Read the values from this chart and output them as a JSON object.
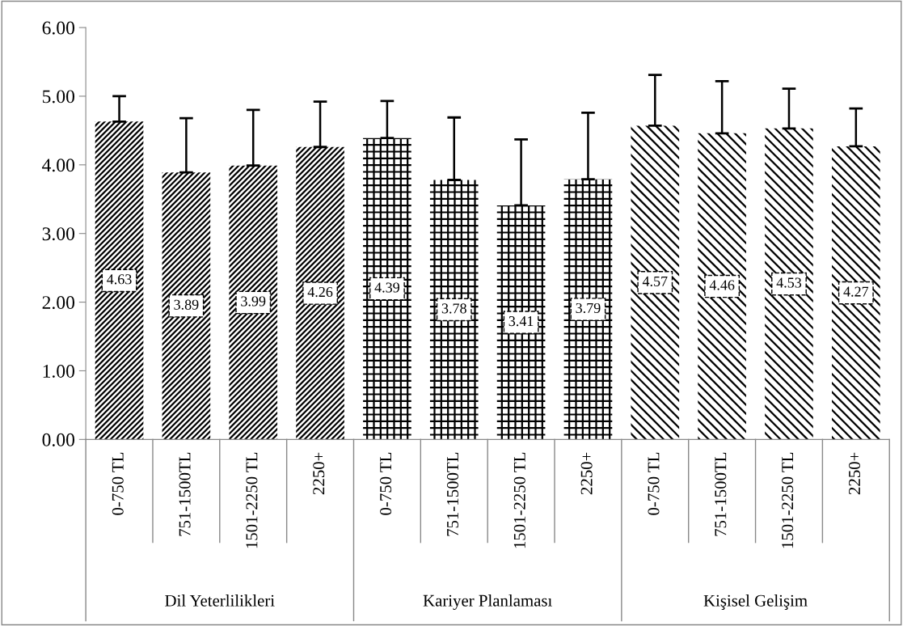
{
  "chart_data": {
    "type": "bar",
    "categories": [
      "0-750 TL",
      "751-1500TL",
      "1501-2250 TL",
      "2250+",
      "0-750 TL",
      "751-1500TL",
      "1501-2250 TL",
      "2250+",
      "0-750 TL",
      "751-1500TL",
      "1501-2250 TL",
      "2250+"
    ],
    "values": [
      4.63,
      3.89,
      3.99,
      4.26,
      4.39,
      3.78,
      3.41,
      3.79,
      4.57,
      4.46,
      4.53,
      4.27
    ],
    "colors": [
      "#000000",
      "#000000",
      "#000000",
      "#000000",
      "#000000",
      "#000000",
      "#000000",
      "#000000",
      "#000000",
      "#000000",
      "#000000",
      "#000000"
    ],
    "errors": [
      [
        4.63,
        5.0
      ],
      [
        3.89,
        4.68
      ],
      [
        3.99,
        4.8
      ],
      [
        4.26,
        4.92
      ],
      [
        4.39,
        4.93
      ],
      [
        3.78,
        4.69
      ],
      [
        3.41,
        4.37
      ],
      [
        3.79,
        4.76
      ],
      [
        4.57,
        5.31
      ],
      [
        4.46,
        5.22
      ],
      [
        4.53,
        5.11
      ],
      [
        4.27,
        4.82
      ]
    ],
    "annotations": [
      "Dil Yeterlilikleri",
      "Kariyer Planlaması",
      "Kişisel Gelişim"
    ],
    "ylim": [
      0,
      6
    ],
    "yticks": [
      {
        "value": 0,
        "label": "0.00"
      },
      {
        "value": 1,
        "label": "1.00"
      },
      {
        "value": 2,
        "label": "2.00"
      },
      {
        "value": 3,
        "label": "3.00"
      },
      {
        "value": 4,
        "label": "4.00"
      },
      {
        "value": 5,
        "label": "5.00"
      },
      {
        "value": 6,
        "label": "6.00"
      }
    ],
    "data_labels": true,
    "grid": false,
    "legend": false
  }
}
